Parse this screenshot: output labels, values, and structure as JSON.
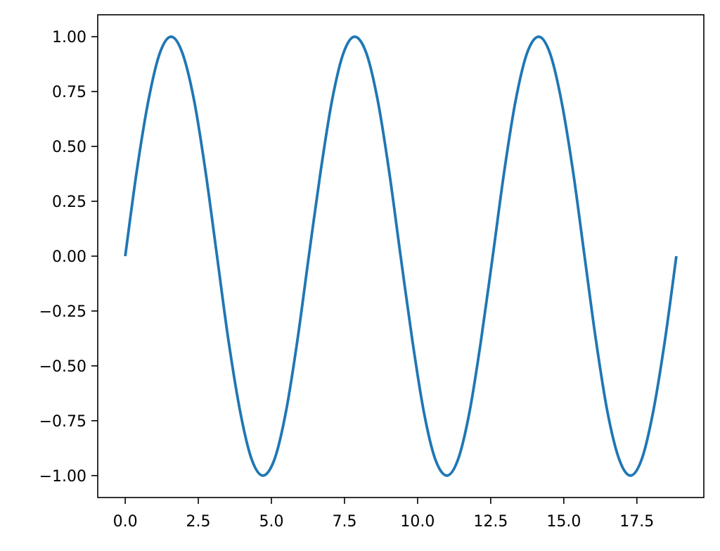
{
  "chart_data": {
    "type": "line",
    "title": "",
    "xlabel": "",
    "ylabel": "",
    "xlim": [
      -0.94,
      19.79
    ],
    "ylim": [
      -1.1,
      1.1
    ],
    "x_ticks": [
      0.0,
      2.5,
      5.0,
      7.5,
      10.0,
      12.5,
      15.0,
      17.5
    ],
    "x_tick_labels": [
      "0.0",
      "2.5",
      "5.0",
      "7.5",
      "10.0",
      "12.5",
      "15.0",
      "17.5"
    ],
    "y_ticks": [
      1.0,
      0.75,
      0.5,
      0.25,
      0.0,
      -0.25,
      -0.5,
      -0.75,
      -1.0
    ],
    "y_tick_labels": [
      "1.00",
      "0.75",
      "0.50",
      "0.25",
      "0.00",
      "−0.25",
      "−0.50",
      "−0.75",
      "−1.00"
    ],
    "grid": false,
    "legend": "none",
    "series": [
      {
        "color": "#1f77b4",
        "x": [
          0.0,
          0.39,
          0.79,
          1.18,
          1.57,
          1.96,
          2.36,
          2.75,
          3.14,
          3.53,
          3.93,
          4.32,
          4.71,
          5.11,
          5.5,
          5.89,
          6.28,
          6.68,
          7.07,
          7.46,
          7.85,
          8.25,
          8.64,
          9.03,
          9.42,
          9.82,
          10.21,
          10.6,
          11.0,
          11.39,
          11.78,
          12.17,
          12.57,
          12.96,
          13.35,
          13.74,
          14.14,
          14.53,
          14.92,
          15.32,
          15.71,
          16.1,
          16.49,
          16.89,
          17.28,
          17.67,
          18.06,
          18.46,
          18.85
        ],
        "y": [
          0.0,
          0.383,
          0.707,
          0.924,
          1.0,
          0.924,
          0.707,
          0.383,
          0.0,
          -0.383,
          -0.707,
          -0.924,
          -1.0,
          -0.924,
          -0.707,
          -0.383,
          0.0,
          0.383,
          0.707,
          0.924,
          1.0,
          0.924,
          0.707,
          0.383,
          0.0,
          -0.383,
          -0.707,
          -0.924,
          -1.0,
          -0.924,
          -0.707,
          -0.383,
          0.0,
          0.383,
          0.707,
          0.924,
          1.0,
          0.924,
          0.707,
          0.383,
          0.0,
          -0.383,
          -0.707,
          -0.924,
          -1.0,
          -0.924,
          -0.707,
          -0.383,
          0.0
        ]
      }
    ]
  }
}
